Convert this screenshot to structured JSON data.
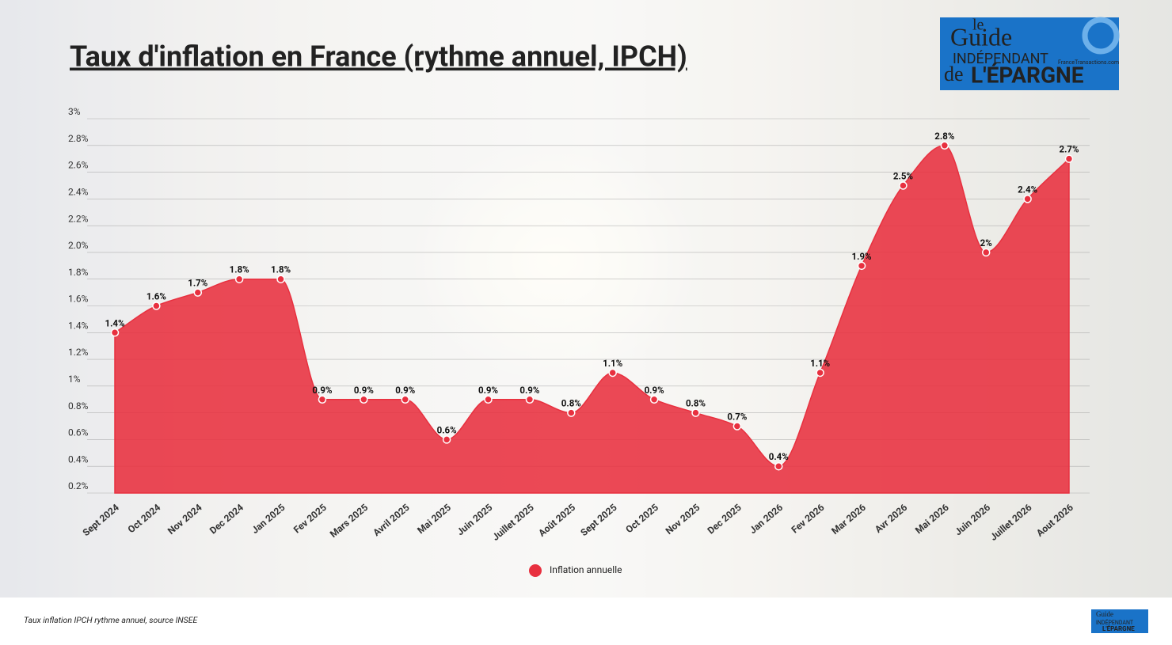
{
  "logo": {
    "le": "le",
    "guide": "Guide",
    "independant": "INDÉPENDANT",
    "de": "de",
    "epargne": "L'ÉPARGNE",
    "site": "FranceTransactions.com"
  },
  "chart_data": {
    "type": "area",
    "title": "Taux d'inflation en France (rythme annuel, IPCH)",
    "categories": [
      "Sept 2024",
      "Oct 2024",
      "Nov 2024",
      "Dec 2024",
      "Jan 2025",
      "Fev 2025",
      "Mars 2025",
      "Avril 2025",
      "Mai 2025",
      "Juin 2025",
      "Juillet 2025",
      "Août 2025",
      "Sept 2025",
      "Oct 2025",
      "Nov 2025",
      "Dec 2025",
      "Jan 2026",
      "Fev 2026",
      "Mar 2026",
      "Avr 2026",
      "Mai 2026",
      "Juin 2026",
      "Juillet 2026",
      "Aout 2026"
    ],
    "series": [
      {
        "name": "Inflation annuelle",
        "color": "#e8303f",
        "values": [
          1.4,
          1.6,
          1.7,
          1.8,
          1.8,
          0.9,
          0.9,
          0.9,
          0.6,
          0.9,
          0.9,
          0.8,
          1.1,
          0.9,
          0.8,
          0.7,
          0.4,
          1.1,
          1.9,
          2.5,
          2.8,
          2,
          2.4,
          2.7
        ],
        "value_labels": [
          "1.4%",
          "1.6%",
          "1.7%",
          "1.8%",
          "1.8%",
          "0.9%",
          "0.9%",
          "0.9%",
          "0.6%",
          "0.9%",
          "0.9%",
          "0.8%",
          "1.1%",
          "0.9%",
          "0.8%",
          "0.7%",
          "0.4%",
          "1.1%",
          "1.9%",
          "2.5%",
          "2.8%",
          "2%",
          "2.4%",
          "2.7%"
        ]
      }
    ],
    "ylim": [
      0.2,
      3
    ],
    "yticks": [
      {
        "value": 0.2,
        "label": "0.2%"
      },
      {
        "value": 0.4,
        "label": "0.4%"
      },
      {
        "value": 0.6,
        "label": "0.6%"
      },
      {
        "value": 0.8,
        "label": "0.8%"
      },
      {
        "value": 1,
        "label": "1%"
      },
      {
        "value": 1.2,
        "label": "1.2%"
      },
      {
        "value": 1.4,
        "label": "1.4%"
      },
      {
        "value": 1.6,
        "label": "1.6%"
      },
      {
        "value": 1.8,
        "label": "1.8%"
      },
      {
        "value": 2,
        "label": "2.0%"
      },
      {
        "value": 2.2,
        "label": "2.2%"
      },
      {
        "value": 2.4,
        "label": "2.4%"
      },
      {
        "value": 2.6,
        "label": "2.6%"
      },
      {
        "value": 2.8,
        "label": "2.8%"
      },
      {
        "value": 3,
        "label": "3%"
      }
    ],
    "grid": true,
    "legend": "bottom"
  },
  "footer": "Taux inflation IPCH rythme annuel, source INSEE"
}
